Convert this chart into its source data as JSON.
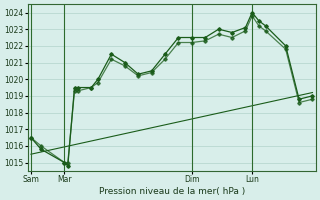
{
  "bg_color": "#d8eeea",
  "plot_bg_color": "#d8eeea",
  "grid_color": "#b8d8d0",
  "line_color": "#1a5c1a",
  "title": "Pression niveau de la mer( hPa )",
  "ylim": [
    1014.5,
    1024.5
  ],
  "yticks": [
    1015,
    1016,
    1017,
    1018,
    1019,
    1020,
    1021,
    1022,
    1023,
    1024
  ],
  "day_labels": [
    "Sam",
    "Mar",
    "Dim",
    "Lun"
  ],
  "day_positions": [
    0,
    10,
    48,
    66
  ],
  "vline_positions": [
    0,
    10,
    48,
    66
  ],
  "series1_x": [
    0,
    3,
    10,
    11,
    13,
    14,
    18,
    20,
    24,
    28,
    32,
    36,
    40,
    44,
    48,
    52,
    56,
    60,
    64,
    66,
    68,
    70,
    76,
    80,
    84
  ],
  "series1_y": [
    1016.5,
    1015.8,
    1015.0,
    1014.8,
    1019.5,
    1019.5,
    1019.5,
    1020.0,
    1021.5,
    1021.0,
    1020.3,
    1020.5,
    1021.5,
    1022.5,
    1022.5,
    1022.5,
    1023.0,
    1022.8,
    1023.1,
    1024.0,
    1023.5,
    1023.2,
    1022.0,
    1018.8,
    1019.0
  ],
  "series2_x": [
    0,
    3,
    10,
    11,
    13,
    14,
    18,
    20,
    24,
    28,
    32,
    36,
    40,
    44,
    48,
    52,
    56,
    60,
    64,
    66,
    68,
    70,
    76,
    80,
    84
  ],
  "series2_y": [
    1016.5,
    1016.0,
    1015.0,
    1015.0,
    1019.3,
    1019.3,
    1019.5,
    1019.8,
    1021.2,
    1020.8,
    1020.2,
    1020.4,
    1021.2,
    1022.2,
    1022.2,
    1022.3,
    1022.7,
    1022.5,
    1022.9,
    1023.8,
    1023.2,
    1022.9,
    1021.8,
    1018.6,
    1018.8
  ],
  "trend_x": [
    0,
    84
  ],
  "trend_y": [
    1015.5,
    1019.2
  ],
  "xlim": [
    -1,
    85
  ]
}
